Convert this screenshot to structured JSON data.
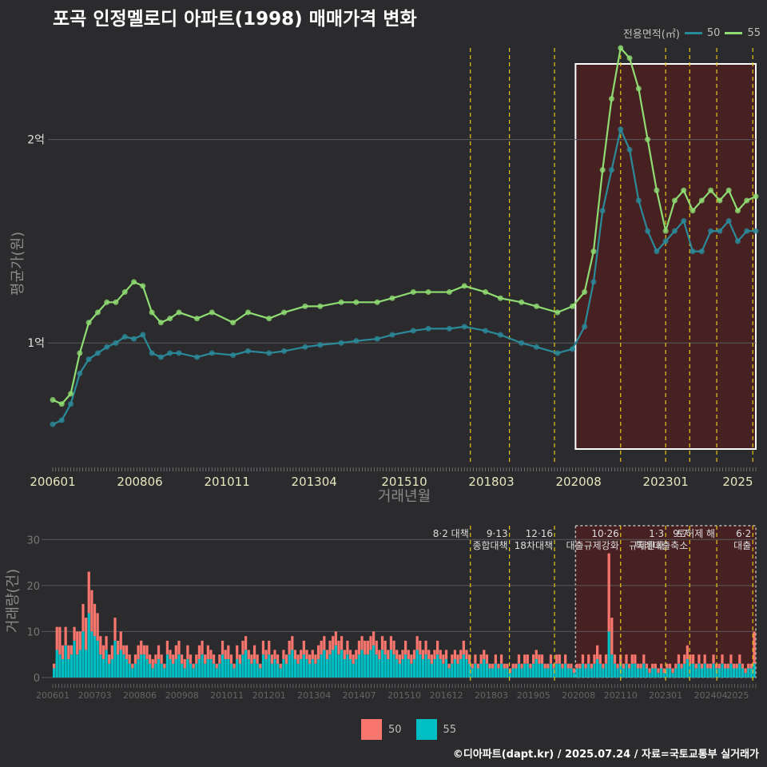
{
  "title": "포곡 인정멜로디 아파트(1998) 매매가격 변화",
  "footer": "©디아파트(dapt.kr) / 2025.07.24 / 자료=국토교통부 실거래가",
  "colors": {
    "s50": "#2a8a9a",
    "s55": "#8fdc72",
    "bar50": "#f8766d",
    "bar55": "#00bfc4",
    "policy": "#e6c619",
    "highlight": "#5a1a1a"
  },
  "legend_top": {
    "title": "전용면적(㎡)",
    "items": [
      {
        "name": "50",
        "color": "#2a8a9a"
      },
      {
        "name": "55",
        "color": "#8fdc72"
      }
    ]
  },
  "legend_bottom": {
    "items": [
      {
        "name": "50",
        "color": "#f8766d"
      },
      {
        "name": "55",
        "color": "#00bfc4"
      }
    ]
  },
  "chart_data": [
    {
      "type": "line",
      "ylabel": "평균가(원)",
      "xlabel": "거래년월",
      "yticks": [
        "1억",
        "2억"
      ],
      "ytick_values": [
        1.0,
        2.0
      ],
      "ylim": [
        0.4,
        2.45
      ],
      "xticks": [
        "200601",
        "200806",
        "201011",
        "201304",
        "201510",
        "201803",
        "202008",
        "202301",
        "2025"
      ],
      "xlim": [
        "200601",
        "202507"
      ],
      "policy_dates": [
        "201708",
        "201809",
        "201912",
        "202110",
        "202301",
        "202309",
        "202406",
        "202506"
      ],
      "highlight_range": [
        "202007",
        "202507"
      ],
      "series": [
        {
          "name": "50",
          "points": [
            [
              "200601",
              0.6
            ],
            [
              "200604",
              0.62
            ],
            [
              "200607",
              0.7
            ],
            [
              "200610",
              0.85
            ],
            [
              "200701",
              0.92
            ],
            [
              "200704",
              0.95
            ],
            [
              "200707",
              0.98
            ],
            [
              "200710",
              1.0
            ],
            [
              "200801",
              1.03
            ],
            [
              "200804",
              1.02
            ],
            [
              "200807",
              1.04
            ],
            [
              "200810",
              0.95
            ],
            [
              "200901",
              0.93
            ],
            [
              "200904",
              0.95
            ],
            [
              "200907",
              0.95
            ],
            [
              "201001",
              0.93
            ],
            [
              "201006",
              0.95
            ],
            [
              "201101",
              0.94
            ],
            [
              "201106",
              0.96
            ],
            [
              "201201",
              0.95
            ],
            [
              "201206",
              0.96
            ],
            [
              "201301",
              0.98
            ],
            [
              "201306",
              0.99
            ],
            [
              "201401",
              1.0
            ],
            [
              "201406",
              1.01
            ],
            [
              "201501",
              1.02
            ],
            [
              "201506",
              1.04
            ],
            [
              "201601",
              1.06
            ],
            [
              "201606",
              1.07
            ],
            [
              "201701",
              1.07
            ],
            [
              "201706",
              1.08
            ],
            [
              "201801",
              1.06
            ],
            [
              "201806",
              1.04
            ],
            [
              "201901",
              1.0
            ],
            [
              "201906",
              0.98
            ],
            [
              "202001",
              0.95
            ],
            [
              "202006",
              0.97
            ],
            [
              "202010",
              1.08
            ],
            [
              "202101",
              1.3
            ],
            [
              "202104",
              1.65
            ],
            [
              "202107",
              1.85
            ],
            [
              "202110",
              2.05
            ],
            [
              "202201",
              1.95
            ],
            [
              "202204",
              1.7
            ],
            [
              "202207",
              1.55
            ],
            [
              "202210",
              1.45
            ],
            [
              "202301",
              1.5
            ],
            [
              "202304",
              1.55
            ],
            [
              "202307",
              1.6
            ],
            [
              "202310",
              1.45
            ],
            [
              "202401",
              1.45
            ],
            [
              "202404",
              1.55
            ],
            [
              "202407",
              1.55
            ],
            [
              "202410",
              1.6
            ],
            [
              "202501",
              1.5
            ],
            [
              "202504",
              1.55
            ],
            [
              "202507",
              1.55
            ]
          ]
        },
        {
          "name": "55",
          "points": [
            [
              "200601",
              0.72
            ],
            [
              "200604",
              0.7
            ],
            [
              "200607",
              0.75
            ],
            [
              "200610",
              0.95
            ],
            [
              "200701",
              1.1
            ],
            [
              "200704",
              1.15
            ],
            [
              "200707",
              1.2
            ],
            [
              "200710",
              1.2
            ],
            [
              "200801",
              1.25
            ],
            [
              "200804",
              1.3
            ],
            [
              "200807",
              1.28
            ],
            [
              "200810",
              1.15
            ],
            [
              "200901",
              1.1
            ],
            [
              "200904",
              1.12
            ],
            [
              "200907",
              1.15
            ],
            [
              "201001",
              1.12
            ],
            [
              "201006",
              1.15
            ],
            [
              "201101",
              1.1
            ],
            [
              "201106",
              1.15
            ],
            [
              "201201",
              1.12
            ],
            [
              "201206",
              1.15
            ],
            [
              "201301",
              1.18
            ],
            [
              "201306",
              1.18
            ],
            [
              "201401",
              1.2
            ],
            [
              "201406",
              1.2
            ],
            [
              "201501",
              1.2
            ],
            [
              "201506",
              1.22
            ],
            [
              "201601",
              1.25
            ],
            [
              "201606",
              1.25
            ],
            [
              "201701",
              1.25
            ],
            [
              "201706",
              1.28
            ],
            [
              "201801",
              1.25
            ],
            [
              "201806",
              1.22
            ],
            [
              "201901",
              1.2
            ],
            [
              "201906",
              1.18
            ],
            [
              "202001",
              1.15
            ],
            [
              "202006",
              1.18
            ],
            [
              "202010",
              1.25
            ],
            [
              "202101",
              1.45
            ],
            [
              "202104",
              1.85
            ],
            [
              "202107",
              2.2
            ],
            [
              "202110",
              2.45
            ],
            [
              "202201",
              2.4
            ],
            [
              "202204",
              2.25
            ],
            [
              "202207",
              2.0
            ],
            [
              "202210",
              1.75
            ],
            [
              "202301",
              1.55
            ],
            [
              "202304",
              1.7
            ],
            [
              "202307",
              1.75
            ],
            [
              "202310",
              1.65
            ],
            [
              "202401",
              1.7
            ],
            [
              "202404",
              1.75
            ],
            [
              "202407",
              1.7
            ],
            [
              "202410",
              1.75
            ],
            [
              "202501",
              1.65
            ],
            [
              "202504",
              1.7
            ],
            [
              "202507",
              1.72
            ]
          ]
        }
      ]
    },
    {
      "type": "bar",
      "stacked": true,
      "ylabel": "거래량(건)",
      "yticks": [
        0,
        10,
        20,
        30
      ],
      "ylim": [
        0,
        33
      ],
      "xticks": [
        "200601",
        "200703",
        "200806",
        "200908",
        "201011",
        "201201",
        "201304",
        "201407",
        "201510",
        "201612",
        "201803",
        "201905",
        "202008",
        "202110",
        "202301",
        "202404",
        "2025"
      ],
      "annotations": [
        {
          "date": "201708",
          "lines": [
            "8·2 대책"
          ]
        },
        {
          "date": "201809",
          "lines": [
            "9·13",
            "종합대책"
          ]
        },
        {
          "date": "201912",
          "lines": [
            "12·16",
            "18차대책"
          ]
        },
        {
          "date": "202110",
          "lines": [
            "10·26",
            "대출규제강화"
          ]
        },
        {
          "date": "202301",
          "lines": [
            "1·3",
            "규제완화"
          ]
        },
        {
          "date": "202309",
          "lines": [
            "9·7",
            "특례대출축소"
          ]
        },
        {
          "date": "202406",
          "lines": [
            "토허제 해"
          ]
        },
        {
          "date": "202506",
          "lines": [
            "6·2",
            "대출"
          ]
        }
      ],
      "series": [
        {
          "name": "55",
          "values": [
            2,
            6,
            5,
            4,
            7,
            4,
            5,
            8,
            5,
            6,
            10,
            6,
            14,
            10,
            9,
            8,
            5,
            4,
            6,
            3,
            4,
            8,
            5,
            6,
            5,
            4,
            3,
            2,
            3,
            4,
            5,
            5,
            4,
            3,
            2,
            3,
            4,
            3,
            2,
            5,
            4,
            3,
            4,
            5,
            3,
            2,
            4,
            3,
            2,
            3,
            4,
            5,
            3,
            4,
            4,
            3,
            2,
            3,
            5,
            4,
            4,
            3,
            2,
            4,
            3,
            5,
            6,
            4,
            3,
            4,
            3,
            2,
            5,
            4,
            5,
            3,
            4,
            3,
            2,
            4,
            3,
            5,
            6,
            4,
            3,
            4,
            5,
            4,
            3,
            4,
            3,
            4,
            5,
            6,
            4,
            5,
            6,
            7,
            5,
            6,
            4,
            5,
            4,
            3,
            4,
            5,
            6,
            5,
            5,
            6,
            7,
            5,
            4,
            6,
            5,
            4,
            6,
            5,
            4,
            3,
            4,
            5,
            4,
            3,
            4,
            6,
            5,
            4,
            5,
            4,
            3,
            4,
            5,
            4,
            3,
            4,
            2,
            3,
            4,
            3,
            4,
            5,
            4,
            3,
            2,
            3,
            2,
            3,
            4,
            3,
            2,
            2,
            3,
            2,
            3,
            2,
            2,
            1,
            2,
            2,
            3,
            2,
            3,
            3,
            2,
            3,
            4,
            3,
            3,
            2,
            2,
            3,
            2,
            3,
            3,
            2,
            3,
            2,
            2,
            1,
            2,
            2,
            3,
            2,
            3,
            2,
            3,
            4,
            3,
            2,
            3,
            10,
            5,
            3,
            2,
            3,
            2,
            3,
            2,
            3,
            3,
            2,
            2,
            3,
            2,
            1,
            2,
            2,
            1,
            2,
            1,
            2,
            2,
            1,
            2,
            3,
            2,
            3,
            4,
            3,
            3,
            2,
            3,
            2,
            3,
            2,
            2,
            3,
            2,
            2,
            3,
            2,
            2,
            3,
            2,
            2,
            3,
            2,
            1,
            2,
            2,
            3
          ]
        },
        {
          "name": "50",
          "values": [
            1,
            5,
            6,
            3,
            4,
            3,
            2,
            3,
            5,
            4,
            6,
            7,
            9,
            9,
            7,
            6,
            4,
            3,
            3,
            2,
            3,
            5,
            3,
            4,
            2,
            3,
            2,
            1,
            2,
            3,
            3,
            2,
            3,
            2,
            2,
            2,
            3,
            2,
            1,
            3,
            2,
            2,
            3,
            3,
            2,
            2,
            3,
            2,
            1,
            2,
            3,
            3,
            2,
            3,
            2,
            2,
            1,
            2,
            3,
            2,
            3,
            2,
            1,
            3,
            2,
            3,
            3,
            2,
            2,
            3,
            2,
            1,
            3,
            2,
            3,
            2,
            2,
            2,
            1,
            2,
            2,
            3,
            3,
            2,
            2,
            2,
            3,
            2,
            2,
            2,
            2,
            3,
            3,
            3,
            2,
            3,
            3,
            3,
            3,
            3,
            2,
            3,
            2,
            2,
            2,
            3,
            3,
            3,
            3,
            3,
            3,
            3,
            2,
            3,
            3,
            2,
            3,
            3,
            2,
            2,
            2,
            3,
            2,
            2,
            2,
            3,
            3,
            2,
            3,
            2,
            2,
            2,
            3,
            2,
            2,
            2,
            1,
            2,
            2,
            2,
            2,
            3,
            2,
            2,
            1,
            2,
            1,
            2,
            2,
            2,
            1,
            1,
            2,
            1,
            2,
            1,
            1,
            1,
            1,
            1,
            2,
            1,
            2,
            2,
            1,
            2,
            2,
            2,
            2,
            1,
            1,
            2,
            1,
            2,
            2,
            1,
            2,
            1,
            1,
            1,
            1,
            1,
            2,
            1,
            2,
            1,
            2,
            3,
            2,
            1,
            2,
            17,
            8,
            2,
            1,
            2,
            1,
            2,
            1,
            2,
            2,
            1,
            1,
            2,
            1,
            1,
            1,
            1,
            1,
            1,
            1,
            1,
            1,
            1,
            1,
            2,
            1,
            2,
            3,
            2,
            2,
            1,
            2,
            1,
            2,
            1,
            1,
            2,
            1,
            1,
            2,
            1,
            1,
            2,
            1,
            1,
            2,
            1,
            1,
            1,
            1,
            7
          ]
        }
      ]
    }
  ]
}
